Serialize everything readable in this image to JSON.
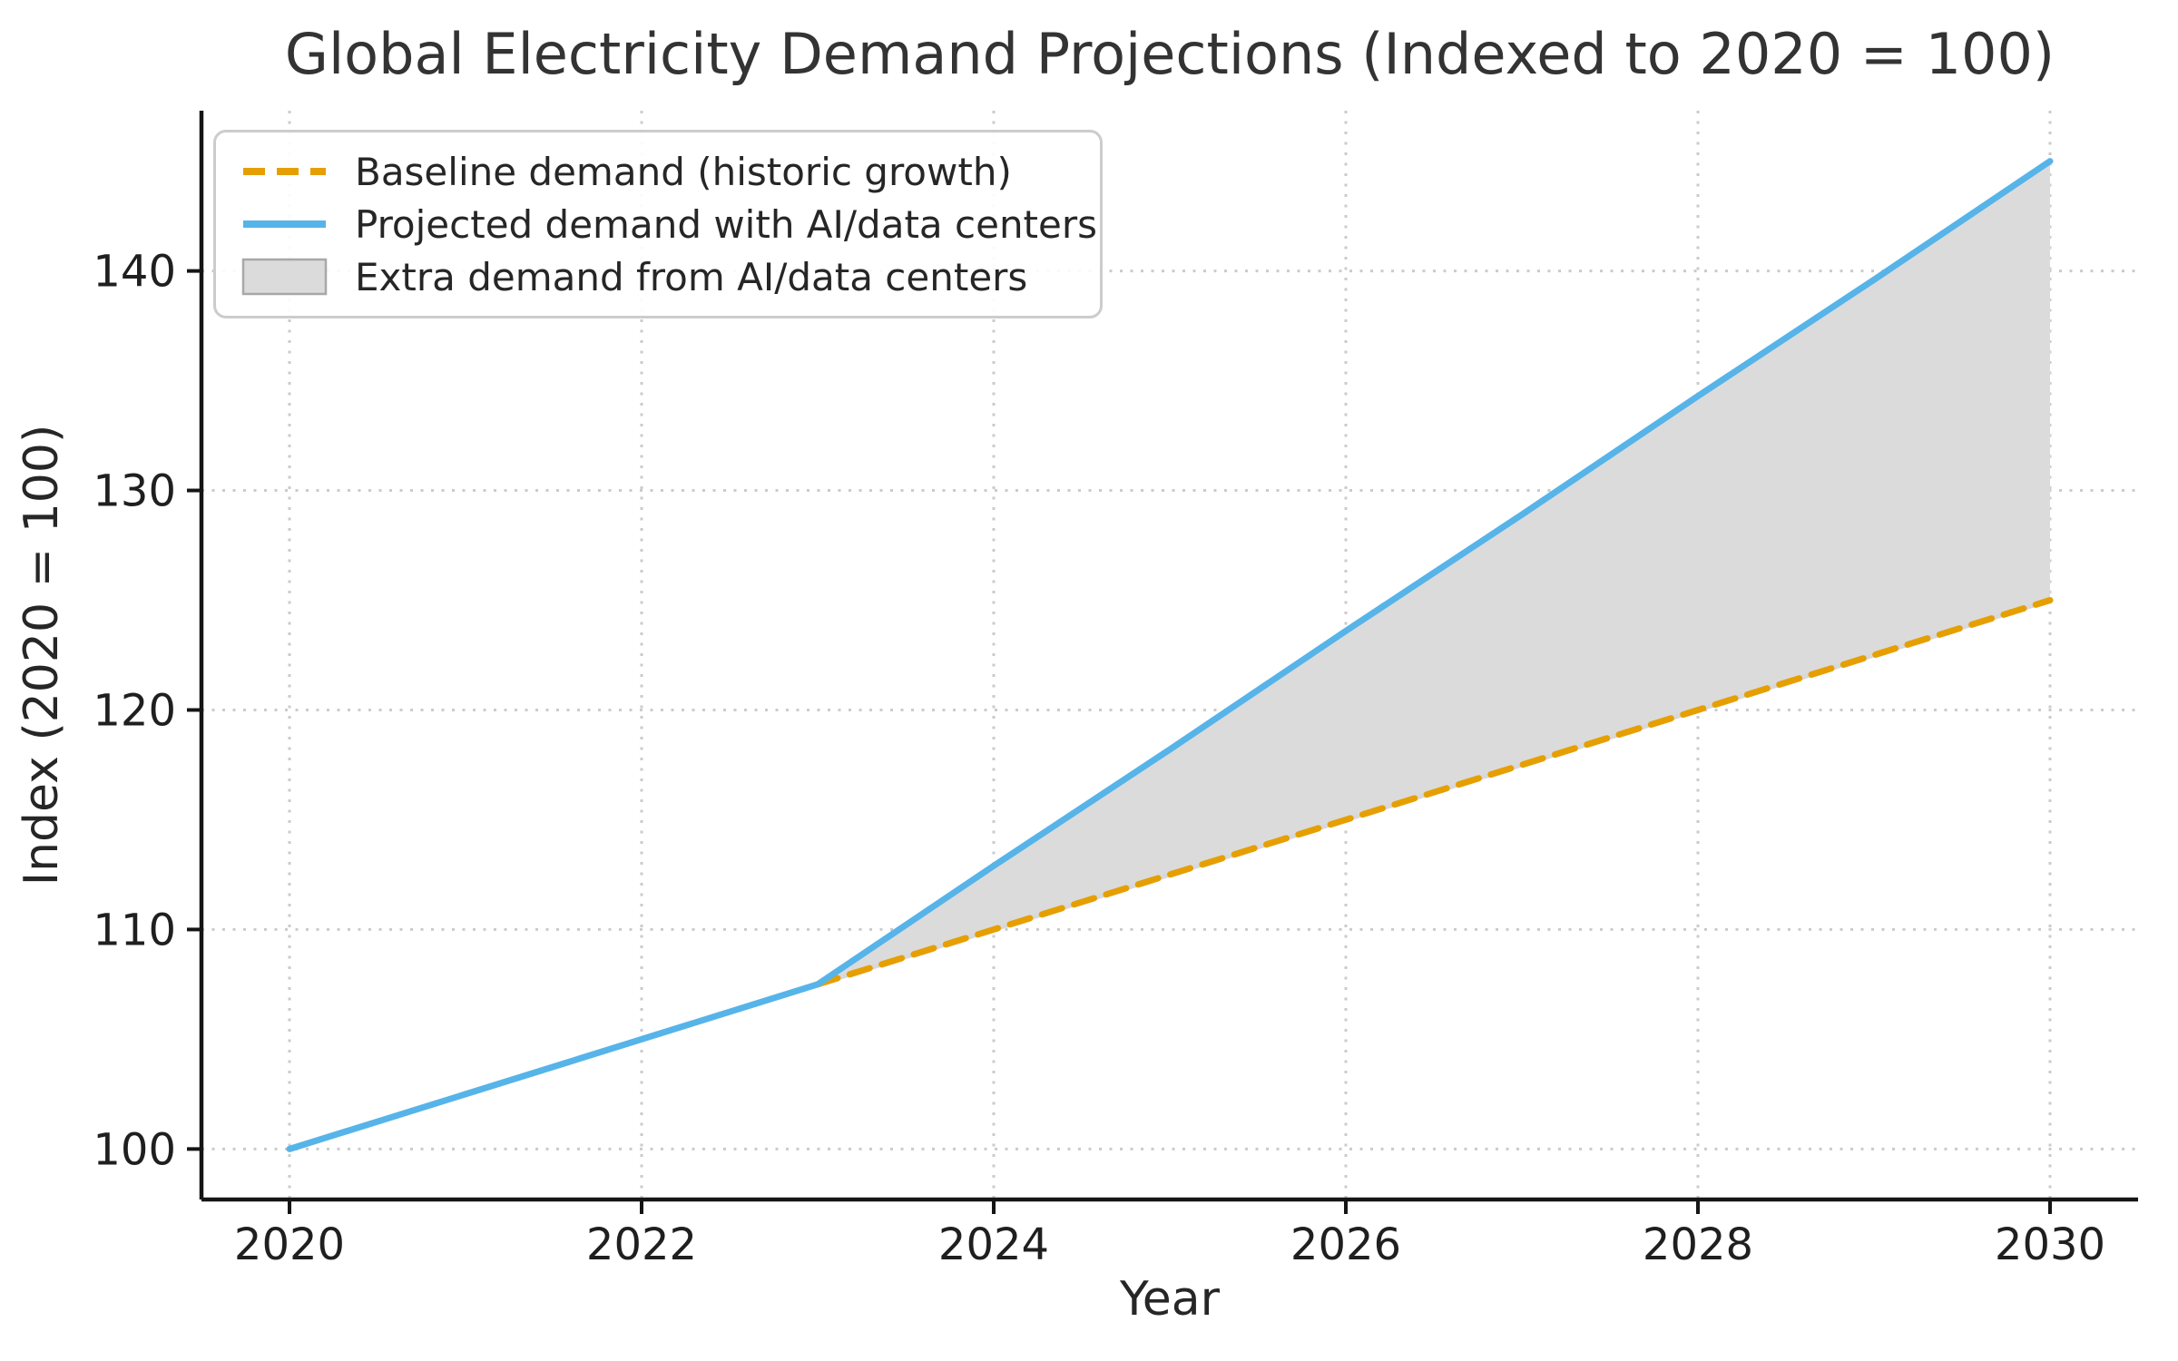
{
  "chart_data": {
    "type": "line",
    "title": "Global Electricity Demand Projections (Indexed to 2020 = 100)",
    "xlabel": "Year",
    "ylabel": "Index (2020 = 100)",
    "xlim": [
      2019.5,
      2030.5
    ],
    "ylim": [
      97.7,
      147.3
    ],
    "xticks": [
      2020,
      2022,
      2024,
      2026,
      2028,
      2030
    ],
    "yticks": [
      100,
      110,
      120,
      130,
      140
    ],
    "grid": true,
    "grid_style": "dotted",
    "legend_position": "upper left",
    "series": [
      {
        "name": "Baseline demand (historic growth)",
        "style": "dashed",
        "color": "#E69F00",
        "x": [
          2023,
          2024,
          2025,
          2026,
          2027,
          2028,
          2029,
          2030
        ],
        "values": [
          107.5,
          110.0,
          112.5,
          115.0,
          117.5,
          120.0,
          122.5,
          125.0
        ]
      },
      {
        "name": "Projected demand with AI/data centers",
        "style": "solid",
        "color": "#56B4E9",
        "x": [
          2020,
          2021,
          2022,
          2023,
          2024,
          2025,
          2026,
          2027,
          2028,
          2029,
          2030
        ],
        "values": [
          100.0,
          102.5,
          105.0,
          107.5,
          112.9,
          118.2,
          123.6,
          128.9,
          134.3,
          139.6,
          145.0
        ]
      },
      {
        "name": "Extra demand from AI/data centers",
        "style": "fill-between",
        "color": "#DBDBDB",
        "between": [
          "Projected demand with AI/data centers",
          "Baseline demand (historic growth)"
        ],
        "x_range": [
          2023,
          2030
        ]
      }
    ]
  },
  "legend": {
    "items": [
      {
        "label": "Baseline demand (historic growth)",
        "swatch": "dashed-line",
        "color": "#E69F00"
      },
      {
        "label": "Projected demand with AI/data centers",
        "swatch": "solid-line",
        "color": "#56B4E9"
      },
      {
        "label": "Extra demand from AI/data centers",
        "swatch": "patch",
        "color": "#DBDBDB"
      }
    ]
  }
}
